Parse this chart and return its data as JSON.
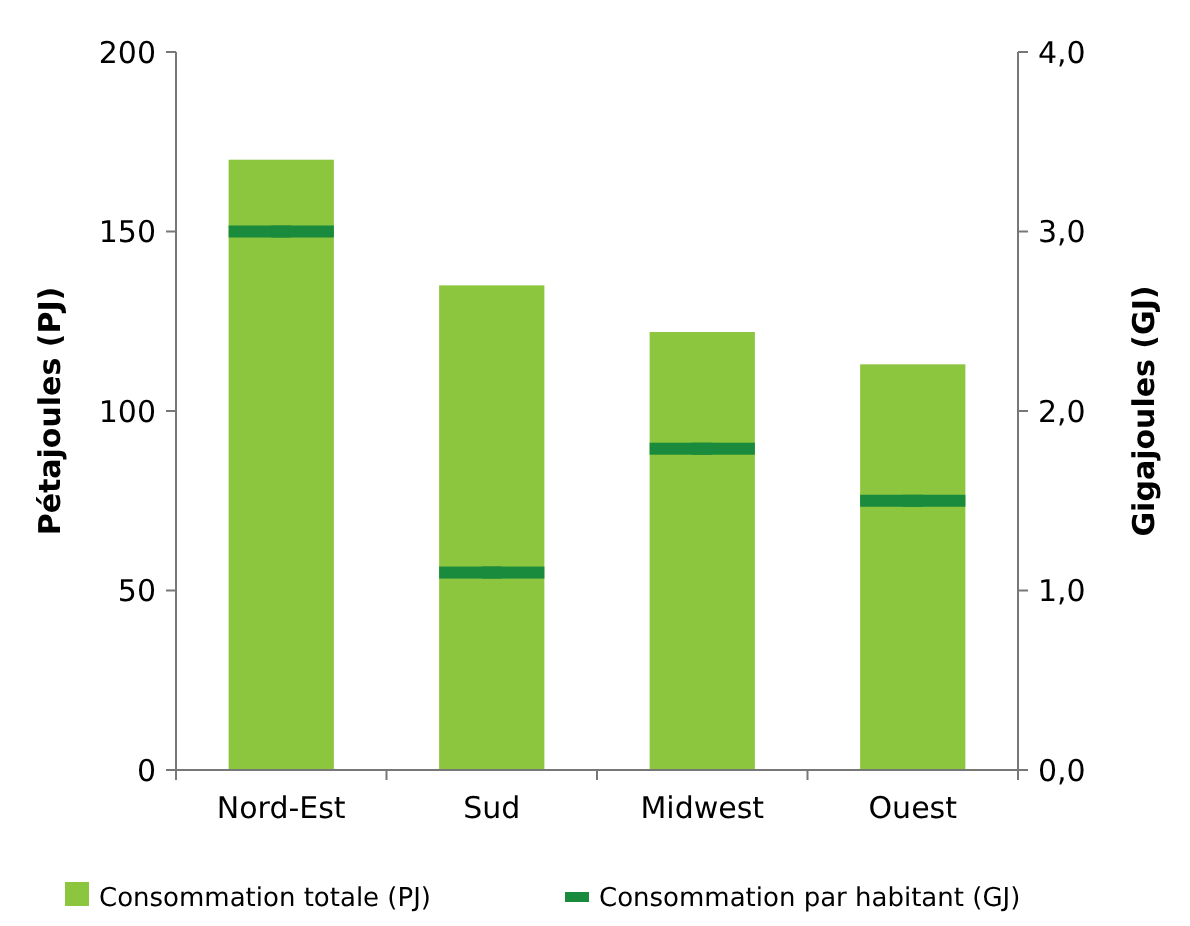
{
  "chart_data": {
    "type": "bar",
    "categories": [
      "Nord-Est",
      "Sud",
      "Midwest",
      "Ouest"
    ],
    "series": [
      {
        "name": "Consommation totale (PJ)",
        "color": "#8cc63f",
        "values": [
          170,
          135,
          122,
          113
        ]
      },
      {
        "name": "Consommation par habitant (GJ)",
        "type": "scatter",
        "axis": "y2",
        "color": "#1a8a3c",
        "values": [
          3.0,
          1.1,
          1.79,
          1.5
        ]
      }
    ],
    "ylabel": "Pétajoules (PJ)",
    "y2label": "Gigajoules (GJ)",
    "ylim": [
      0,
      200
    ],
    "yticks": [
      0,
      50,
      100,
      150,
      200
    ],
    "y2lim": [
      0,
      4
    ],
    "y2ticks": [
      {
        "value": 0,
        "label": "0,0"
      },
      {
        "value": 1,
        "label": "1,0"
      },
      {
        "value": 2,
        "label": "2,0"
      },
      {
        "value": 3,
        "label": "3,0"
      },
      {
        "value": 4,
        "label": "4,0"
      }
    ],
    "legend": "bottom",
    "grid": false
  }
}
